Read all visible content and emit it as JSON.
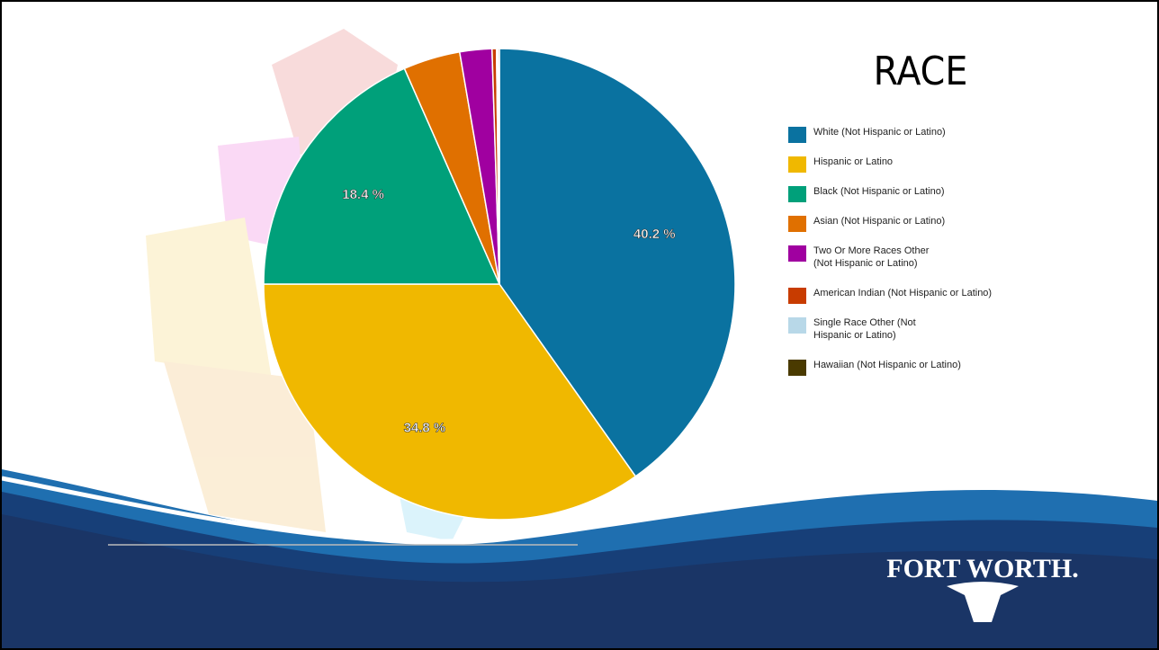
{
  "chart_data": {
    "type": "pie",
    "title": "RACE",
    "categories": [
      "White (Not Hispanic or Latino)",
      "Hispanic or Latino",
      "Black (Not Hispanic or Latino)",
      "Asian (Not Hispanic or Latino)",
      "Two Or More Races Other (Not Hispanic or Latino)",
      "American Indian (Not Hispanic or Latino)",
      "Single Race Other (Not Hispanic or Latino)",
      "Hawaiian (Not Hispanic or Latino)"
    ],
    "values": [
      40.2,
      34.8,
      18.4,
      3.9,
      2.2,
      0.3,
      0.1,
      0.1
    ],
    "value_labels": [
      "40.2 %",
      "34.8 %",
      "18.4 %",
      null,
      null,
      null,
      null,
      null
    ],
    "colors": [
      "#0a72a0",
      "#f0b800",
      "#00a07a",
      "#e07000",
      "#a000a0",
      "#c83c00",
      "#b8d8e8",
      "#4a3a00"
    ],
    "legend": "right"
  },
  "logo": "FORT WORTH."
}
